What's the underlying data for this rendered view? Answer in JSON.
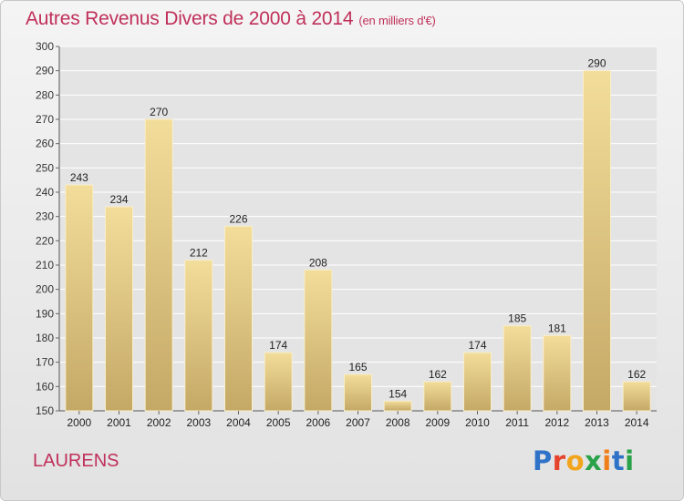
{
  "header": {
    "title": "Autres Revenus Divers de 2000 à 2014",
    "unit": "(en milliers d'€)"
  },
  "place_label": "LAURENS",
  "logo": {
    "text": "Proxiti",
    "colors": [
      "#2f73c8",
      "#e6452d",
      "#f2a41c",
      "#2aa24a",
      "#ef7f1a",
      "#2f73c8",
      "#2aa24a"
    ]
  },
  "colors": {
    "title": "#c0305a",
    "bar_light": "#f3dd9a",
    "bar_dark": "#c4a866",
    "grid": "#ffffff"
  },
  "chart_data": {
    "type": "bar",
    "title": "Autres Revenus Divers de 2000 à 2014",
    "categories": [
      "2000",
      "2001",
      "2002",
      "2003",
      "2004",
      "2005",
      "2006",
      "2007",
      "2008",
      "2009",
      "2010",
      "2011",
      "2012",
      "2013",
      "2014"
    ],
    "values": [
      243,
      234,
      270,
      212,
      226,
      174,
      208,
      165,
      154,
      162,
      174,
      185,
      181,
      290,
      162
    ],
    "ylim": [
      150,
      300
    ],
    "yticks": [
      150,
      160,
      170,
      180,
      190,
      200,
      210,
      220,
      230,
      240,
      250,
      260,
      270,
      280,
      290,
      300
    ],
    "grid": true,
    "data_labels": true
  }
}
